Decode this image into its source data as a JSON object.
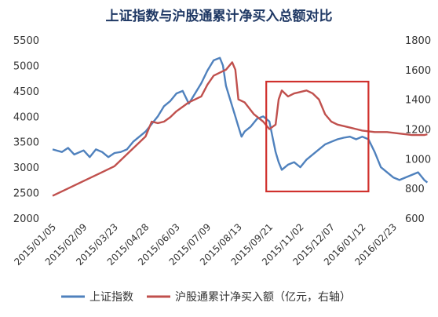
{
  "chart_data": {
    "type": "line",
    "title": "上证指数与沪股通累计净买入总额对比",
    "x_ticks": [
      "2015/01/05",
      "2015/02/09",
      "2015/03/23",
      "2015/04/28",
      "2015/06/03",
      "2015/07/09",
      "2015/08/13",
      "2015/09/21",
      "2015/11/02",
      "2015/12/07",
      "2016/01/12",
      "2016/02/23"
    ],
    "left_axis": {
      "min": 2000,
      "max": 5500,
      "ticks": [
        2000,
        2500,
        3000,
        3500,
        4000,
        4500,
        5000,
        5500
      ]
    },
    "right_axis": {
      "min": 600,
      "max": 1800,
      "ticks": [
        600,
        800,
        1000,
        1200,
        1400,
        1600,
        1800
      ]
    },
    "legend_position": "bottom",
    "grid": false,
    "series": [
      {
        "name": "上证指数",
        "axis": "left",
        "color": "#4f81bd",
        "points": [
          [
            0,
            3350
          ],
          [
            0.3,
            3300
          ],
          [
            0.5,
            3380
          ],
          [
            0.7,
            3250
          ],
          [
            1.0,
            3330
          ],
          [
            1.2,
            3200
          ],
          [
            1.4,
            3350
          ],
          [
            1.6,
            3300
          ],
          [
            1.8,
            3200
          ],
          [
            2.0,
            3280
          ],
          [
            2.2,
            3300
          ],
          [
            2.4,
            3350
          ],
          [
            2.6,
            3500
          ],
          [
            2.8,
            3600
          ],
          [
            3.0,
            3700
          ],
          [
            3.2,
            3850
          ],
          [
            3.4,
            4000
          ],
          [
            3.6,
            4200
          ],
          [
            3.8,
            4300
          ],
          [
            4.0,
            4450
          ],
          [
            4.2,
            4500
          ],
          [
            4.4,
            4250
          ],
          [
            4.6,
            4450
          ],
          [
            4.8,
            4650
          ],
          [
            5.0,
            4900
          ],
          [
            5.2,
            5100
          ],
          [
            5.4,
            5150
          ],
          [
            5.5,
            5000
          ],
          [
            5.6,
            4600
          ],
          [
            5.8,
            4200
          ],
          [
            5.9,
            4000
          ],
          [
            6.0,
            3800
          ],
          [
            6.1,
            3600
          ],
          [
            6.2,
            3700
          ],
          [
            6.4,
            3800
          ],
          [
            6.6,
            3950
          ],
          [
            6.8,
            4000
          ],
          [
            7.0,
            3900
          ],
          [
            7.1,
            3600
          ],
          [
            7.2,
            3300
          ],
          [
            7.3,
            3100
          ],
          [
            7.4,
            2950
          ],
          [
            7.6,
            3050
          ],
          [
            7.8,
            3100
          ],
          [
            8.0,
            3000
          ],
          [
            8.2,
            3150
          ],
          [
            8.4,
            3250
          ],
          [
            8.6,
            3350
          ],
          [
            8.8,
            3450
          ],
          [
            9.0,
            3500
          ],
          [
            9.2,
            3550
          ],
          [
            9.4,
            3580
          ],
          [
            9.6,
            3600
          ],
          [
            9.8,
            3550
          ],
          [
            10.0,
            3600
          ],
          [
            10.2,
            3550
          ],
          [
            10.4,
            3300
          ],
          [
            10.6,
            3000
          ],
          [
            10.8,
            2900
          ],
          [
            11.0,
            2800
          ],
          [
            11.2,
            2750
          ],
          [
            11.4,
            2800
          ],
          [
            11.6,
            2850
          ],
          [
            11.8,
            2900
          ],
          [
            12.0,
            2750
          ],
          [
            12.1,
            2700
          ]
        ]
      },
      {
        "name": "沪股通累计净买入额（亿元，右轴）",
        "axis": "right",
        "color": "#c0504d",
        "points": [
          [
            0,
            750
          ],
          [
            0.5,
            800
          ],
          [
            1.0,
            850
          ],
          [
            1.5,
            900
          ],
          [
            2.0,
            950
          ],
          [
            2.5,
            1050
          ],
          [
            3.0,
            1150
          ],
          [
            3.2,
            1250
          ],
          [
            3.4,
            1240
          ],
          [
            3.6,
            1250
          ],
          [
            3.8,
            1280
          ],
          [
            4.0,
            1320
          ],
          [
            4.2,
            1350
          ],
          [
            4.4,
            1380
          ],
          [
            4.6,
            1400
          ],
          [
            4.8,
            1420
          ],
          [
            5.0,
            1500
          ],
          [
            5.2,
            1560
          ],
          [
            5.4,
            1580
          ],
          [
            5.6,
            1600
          ],
          [
            5.8,
            1650
          ],
          [
            5.9,
            1600
          ],
          [
            6.0,
            1400
          ],
          [
            6.2,
            1380
          ],
          [
            6.5,
            1300
          ],
          [
            6.8,
            1250
          ],
          [
            7.0,
            1200
          ],
          [
            7.2,
            1230
          ],
          [
            7.3,
            1400
          ],
          [
            7.4,
            1460
          ],
          [
            7.6,
            1420
          ],
          [
            7.8,
            1440
          ],
          [
            8.0,
            1450
          ],
          [
            8.2,
            1460
          ],
          [
            8.4,
            1440
          ],
          [
            8.6,
            1400
          ],
          [
            8.8,
            1300
          ],
          [
            9.0,
            1250
          ],
          [
            9.2,
            1230
          ],
          [
            9.4,
            1220
          ],
          [
            9.6,
            1210
          ],
          [
            9.8,
            1200
          ],
          [
            10.0,
            1190
          ],
          [
            10.4,
            1180
          ],
          [
            10.8,
            1180
          ],
          [
            11.2,
            1170
          ],
          [
            11.6,
            1160
          ],
          [
            12.0,
            1160
          ],
          [
            12.1,
            1165
          ]
        ]
      }
    ]
  }
}
